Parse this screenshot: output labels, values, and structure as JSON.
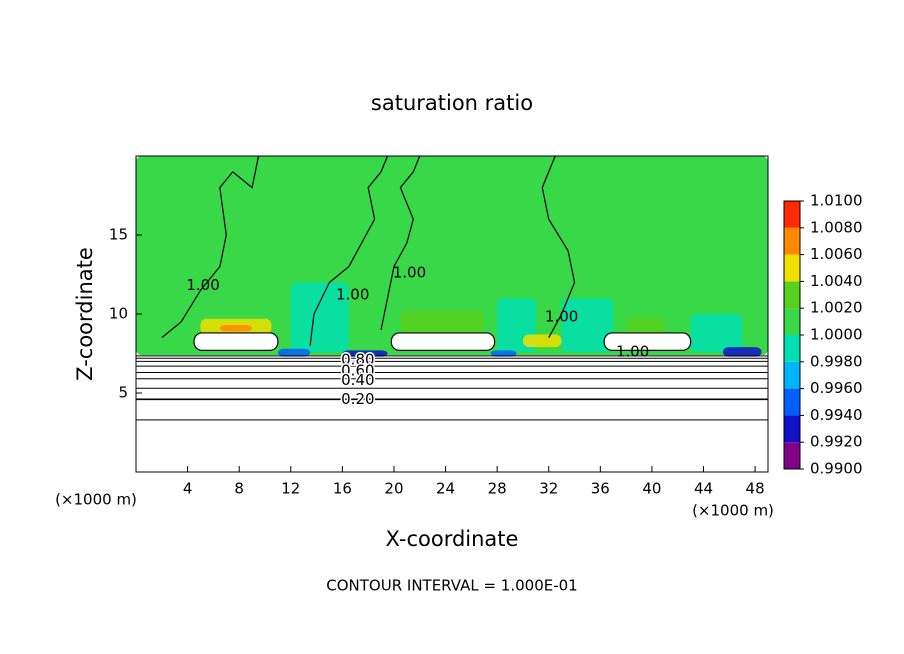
{
  "chart_data": {
    "type": "contour",
    "title": "saturation ratio",
    "x_label": "X-coordinate",
    "y_label": "Z-coordinate",
    "x_unit": "(×1000 m)",
    "y_unit": "(×1000 m)",
    "footer": "CONTOUR INTERVAL = 1.000E-01",
    "xlim": [
      0,
      49
    ],
    "ylim": [
      0,
      20
    ],
    "xticks": [
      4,
      8,
      12,
      16,
      20,
      24,
      28,
      32,
      36,
      40,
      44,
      48
    ],
    "yticks": [
      5,
      10,
      15
    ],
    "colorbar": {
      "ticks": [
        {
          "value": 0.99,
          "label": "0.9900"
        },
        {
          "value": 0.992,
          "label": "0.9920"
        },
        {
          "value": 0.994,
          "label": "0.9940"
        },
        {
          "value": 0.996,
          "label": "0.9960"
        },
        {
          "value": 0.998,
          "label": "0.9980"
        },
        {
          "value": 1.0,
          "label": "1.0000"
        },
        {
          "value": 1.002,
          "label": "1.0020"
        },
        {
          "value": 1.004,
          "label": "1.0040"
        },
        {
          "value": 1.006,
          "label": "1.0060"
        },
        {
          "value": 1.008,
          "label": "1.0080"
        },
        {
          "value": 1.01,
          "label": "1.0100"
        }
      ],
      "colors": [
        "#80008a",
        "#1010c8",
        "#0060ff",
        "#00b4ff",
        "#00e0b0",
        "#38d848",
        "#58d020",
        "#f0e000",
        "#ff8a00",
        "#ff2a00",
        "#ff9898"
      ]
    },
    "field": [
      {
        "x": [
          0,
          49
        ],
        "z": [
          7.4,
          20
        ],
        "value": 1.0005
      },
      {
        "x": [
          12,
          16.5
        ],
        "z": [
          7.6,
          12
        ],
        "value": 0.9985
      },
      {
        "x": [
          28,
          31
        ],
        "z": [
          7.6,
          11
        ],
        "value": 0.9985
      },
      {
        "x": [
          33,
          37
        ],
        "z": [
          7.6,
          11
        ],
        "value": 0.9985
      },
      {
        "x": [
          43,
          47
        ],
        "z": [
          7.6,
          10
        ],
        "value": 0.9985
      },
      {
        "x": [
          5,
          10.5
        ],
        "z": [
          8.7,
          9.7
        ],
        "value": 1.005
      },
      {
        "x": [
          6.5,
          9
        ],
        "z": [
          8.9,
          9.3
        ],
        "value": 1.007
      },
      {
        "x": [
          20.5,
          27
        ],
        "z": [
          8.8,
          10.2
        ],
        "value": 1.003
      },
      {
        "x": [
          38,
          41
        ],
        "z": [
          8.8,
          9.8
        ],
        "value": 1.003
      },
      {
        "x": [
          30,
          33
        ],
        "z": [
          7.9,
          8.7
        ],
        "value": 1.005
      },
      {
        "x": [
          11,
          13.5
        ],
        "z": [
          7.3,
          7.8
        ],
        "value": 0.995
      },
      {
        "x": [
          16,
          19.5
        ],
        "z": [
          7.3,
          7.7
        ],
        "value": 0.993
      },
      {
        "x": [
          27.5,
          29.5
        ],
        "z": [
          7.3,
          7.7
        ],
        "value": 0.995
      },
      {
        "x": [
          45.5,
          48.5
        ],
        "z": [
          7.3,
          7.9
        ],
        "value": 0.993
      }
    ],
    "clouds": [
      {
        "x": [
          4.5,
          11
        ],
        "z": [
          7.7,
          8.8
        ]
      },
      {
        "x": [
          19.8,
          27.8
        ],
        "z": [
          7.7,
          8.8
        ]
      },
      {
        "x": [
          36.3,
          43
        ],
        "z": [
          7.7,
          8.8
        ]
      }
    ],
    "levels": [
      {
        "level": 0.1,
        "z": 3.3
      },
      {
        "level": 0.2,
        "z": 4.6
      },
      {
        "level": 0.3,
        "z": 5.3
      },
      {
        "level": 0.4,
        "z": 5.9
      },
      {
        "level": 0.5,
        "z": 6.3
      },
      {
        "level": 0.6,
        "z": 6.7
      },
      {
        "level": 0.7,
        "z": 7.0
      },
      {
        "level": 0.8,
        "z": 7.2
      },
      {
        "level": 0.9,
        "z": 7.35
      }
    ],
    "contours": [
      {
        "level": 1.0,
        "x": [
          2,
          3.5,
          5,
          6.5,
          7,
          6.5,
          7.5,
          9,
          9.5
        ],
        "z": [
          8.5,
          9.5,
          11.5,
          13,
          15,
          18,
          19,
          18,
          20
        ]
      },
      {
        "level": 1.0,
        "x": [
          13.5,
          13.8,
          15,
          16.5,
          17.5,
          18.5,
          18,
          19,
          19.5
        ],
        "z": [
          8,
          10,
          12,
          13,
          14.5,
          16,
          18,
          19,
          20
        ]
      },
      {
        "level": 1.0,
        "x": [
          19,
          19.5,
          20,
          21,
          21.5,
          20.5,
          21.5,
          22
        ],
        "z": [
          9,
          11,
          13,
          14.5,
          16,
          18,
          19,
          20
        ]
      },
      {
        "level": 1.0,
        "x": [
          32,
          33,
          34,
          33.5,
          32,
          31.5,
          32.5
        ],
        "z": [
          8.5,
          10,
          12,
          14,
          16,
          18,
          20
        ]
      }
    ],
    "contour_labels": [
      {
        "label": "1.00",
        "x": 5.2,
        "z": 11.8
      },
      {
        "label": "1.00",
        "x": 16.8,
        "z": 11.2
      },
      {
        "label": "1.00",
        "x": 21.2,
        "z": 12.6
      },
      {
        "label": "1.00",
        "x": 33,
        "z": 9.8
      },
      {
        "label": "1.00",
        "x": 38.5,
        "z": 7.6
      },
      {
        "label": "0.80",
        "x": 17.2,
        "z": 7.1
      },
      {
        "label": "0.60",
        "x": 17.2,
        "z": 6.4
      },
      {
        "label": "0.40",
        "x": 17.2,
        "z": 5.8
      },
      {
        "label": "0.20",
        "x": 17.2,
        "z": 4.6
      }
    ]
  }
}
